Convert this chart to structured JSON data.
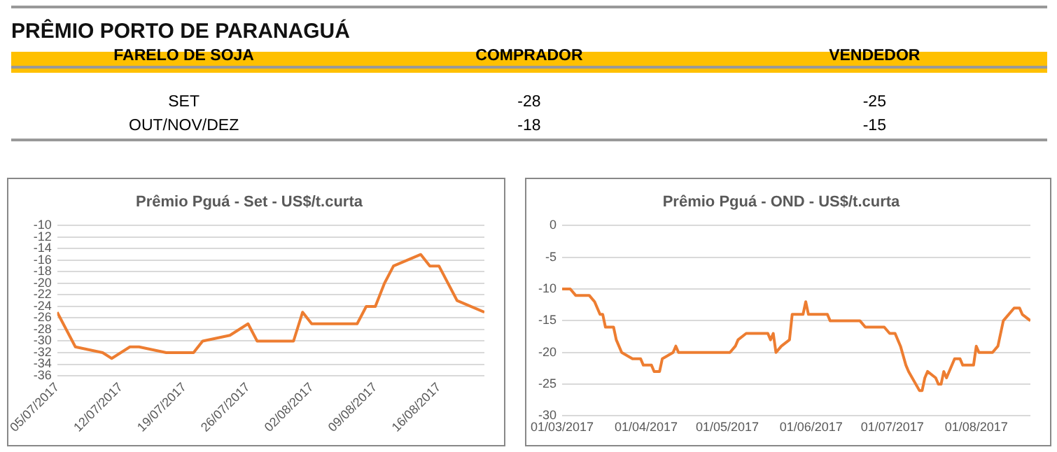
{
  "chart_data": [
    {
      "type": "other",
      "title": "PRÊMIO PORTO DE PARANAGUÁ",
      "xlabel": "FARELO DE SOJA",
      "categories": [
        "SET",
        "OUT/NOV/DEZ"
      ],
      "data_labels": true,
      "series": [
        {
          "name": "COMPRADOR",
          "values": [
            -28,
            -18
          ]
        },
        {
          "name": "VENDEDOR",
          "values": [
            -25,
            -15
          ]
        }
      ]
    },
    {
      "type": "line",
      "title": "Prêmio Pguá - Set - US$/t.curta",
      "grid": "y",
      "legend": false,
      "marker": "none",
      "line_style": "solid",
      "xlim": [
        "2017-07-05",
        "2017-08-21"
      ],
      "xticks": [
        {
          "value": "2017-07-05",
          "label": "05/07/2017"
        },
        {
          "value": "2017-07-12",
          "label": "12/07/2017"
        },
        {
          "value": "2017-07-19",
          "label": "19/07/2017"
        },
        {
          "value": "2017-07-26",
          "label": "26/07/2017"
        },
        {
          "value": "2017-08-02",
          "label": "02/08/2017"
        },
        {
          "value": "2017-08-09",
          "label": "09/08/2017"
        },
        {
          "value": "2017-08-16",
          "label": "16/08/2017"
        }
      ],
      "ylim": [
        -36,
        -10
      ],
      "yticks": [
        -36,
        -34,
        -32,
        -30,
        -28,
        -26,
        -24,
        -22,
        -20,
        -18,
        -16,
        -14,
        -12,
        -10
      ],
      "series": [
        {
          "color": "#ed7d31",
          "x": [
            "2017-07-05",
            "2017-07-07",
            "2017-07-10",
            "2017-07-11",
            "2017-07-13",
            "2017-07-14",
            "2017-07-17",
            "2017-07-20",
            "2017-07-21",
            "2017-07-24",
            "2017-07-25",
            "2017-07-26",
            "2017-07-27",
            "2017-07-31",
            "2017-08-01",
            "2017-08-02",
            "2017-08-07",
            "2017-08-08",
            "2017-08-09",
            "2017-08-10",
            "2017-08-11",
            "2017-08-14",
            "2017-08-15",
            "2017-08-16",
            "2017-08-18",
            "2017-08-21"
          ],
          "values": [
            -25,
            -31,
            -32,
            -33,
            -31,
            -31,
            -32,
            -32,
            -30,
            -29,
            -28,
            -27,
            -30,
            -30,
            -25,
            -27,
            -27,
            -24,
            -24,
            -20,
            -17,
            -15,
            -17,
            -17,
            -23,
            -25
          ]
        }
      ]
    },
    {
      "type": "line",
      "title": "Prêmio Pguá - OND - US$/t.curta",
      "grid": "y",
      "legend": false,
      "marker": "none",
      "line_style": "solid",
      "xlim": [
        "2017-03-01",
        "2017-08-21"
      ],
      "xticks": [
        {
          "value": "2017-03-01",
          "label": "01/03/2017"
        },
        {
          "value": "2017-04-01",
          "label": "01/04/2017"
        },
        {
          "value": "2017-05-01",
          "label": "01/05/2017"
        },
        {
          "value": "2017-06-01",
          "label": "01/06/2017"
        },
        {
          "value": "2017-07-01",
          "label": "01/07/2017"
        },
        {
          "value": "2017-08-01",
          "label": "01/08/2017"
        }
      ],
      "ylim": [
        -30,
        0
      ],
      "yticks": [
        -30,
        -25,
        -20,
        -15,
        -10,
        -5,
        0
      ],
      "series": [
        {
          "color": "#ed7d31",
          "x": [
            "2017-03-01",
            "2017-03-04",
            "2017-03-06",
            "2017-03-11",
            "2017-03-13",
            "2017-03-15",
            "2017-03-16",
            "2017-03-17",
            "2017-03-20",
            "2017-03-21",
            "2017-03-23",
            "2017-03-27",
            "2017-03-30",
            "2017-03-31",
            "2017-04-03",
            "2017-04-04",
            "2017-04-06",
            "2017-04-07",
            "2017-04-11",
            "2017-04-12",
            "2017-04-13",
            "2017-05-02",
            "2017-05-04",
            "2017-05-05",
            "2017-05-08",
            "2017-05-16",
            "2017-05-17",
            "2017-05-18",
            "2017-05-19",
            "2017-05-21",
            "2017-05-24",
            "2017-05-25",
            "2017-05-29",
            "2017-05-30",
            "2017-05-31",
            "2017-06-07",
            "2017-06-08",
            "2017-06-19",
            "2017-06-21",
            "2017-06-28",
            "2017-06-30",
            "2017-07-02",
            "2017-07-04",
            "2017-07-06",
            "2017-07-07",
            "2017-07-11",
            "2017-07-12",
            "2017-07-13",
            "2017-07-14",
            "2017-07-17",
            "2017-07-18",
            "2017-07-19",
            "2017-07-20",
            "2017-07-21",
            "2017-07-24",
            "2017-07-26",
            "2017-07-27",
            "2017-07-31",
            "2017-08-01",
            "2017-08-02",
            "2017-08-07",
            "2017-08-09",
            "2017-08-11",
            "2017-08-15",
            "2017-08-17",
            "2017-08-18",
            "2017-08-21"
          ],
          "values": [
            -10,
            -10,
            -11,
            -11,
            -12,
            -14,
            -14,
            -16,
            -16,
            -18,
            -20,
            -21,
            -21,
            -22,
            -22,
            -23,
            -23,
            -21,
            -20,
            -19,
            -20,
            -20,
            -19,
            -18,
            -17,
            -17,
            -18,
            -17,
            -20,
            -19,
            -18,
            -14,
            -14,
            -12,
            -14,
            -14,
            -15,
            -15,
            -16,
            -16,
            -17,
            -17,
            -19,
            -22,
            -23,
            -26,
            -26,
            -24,
            -23,
            -24,
            -25,
            -25,
            -23,
            -24,
            -21,
            -21,
            -22,
            -22,
            -19,
            -20,
            -20,
            -19,
            -15,
            -13,
            -13,
            -14,
            -15
          ]
        }
      ]
    }
  ]
}
